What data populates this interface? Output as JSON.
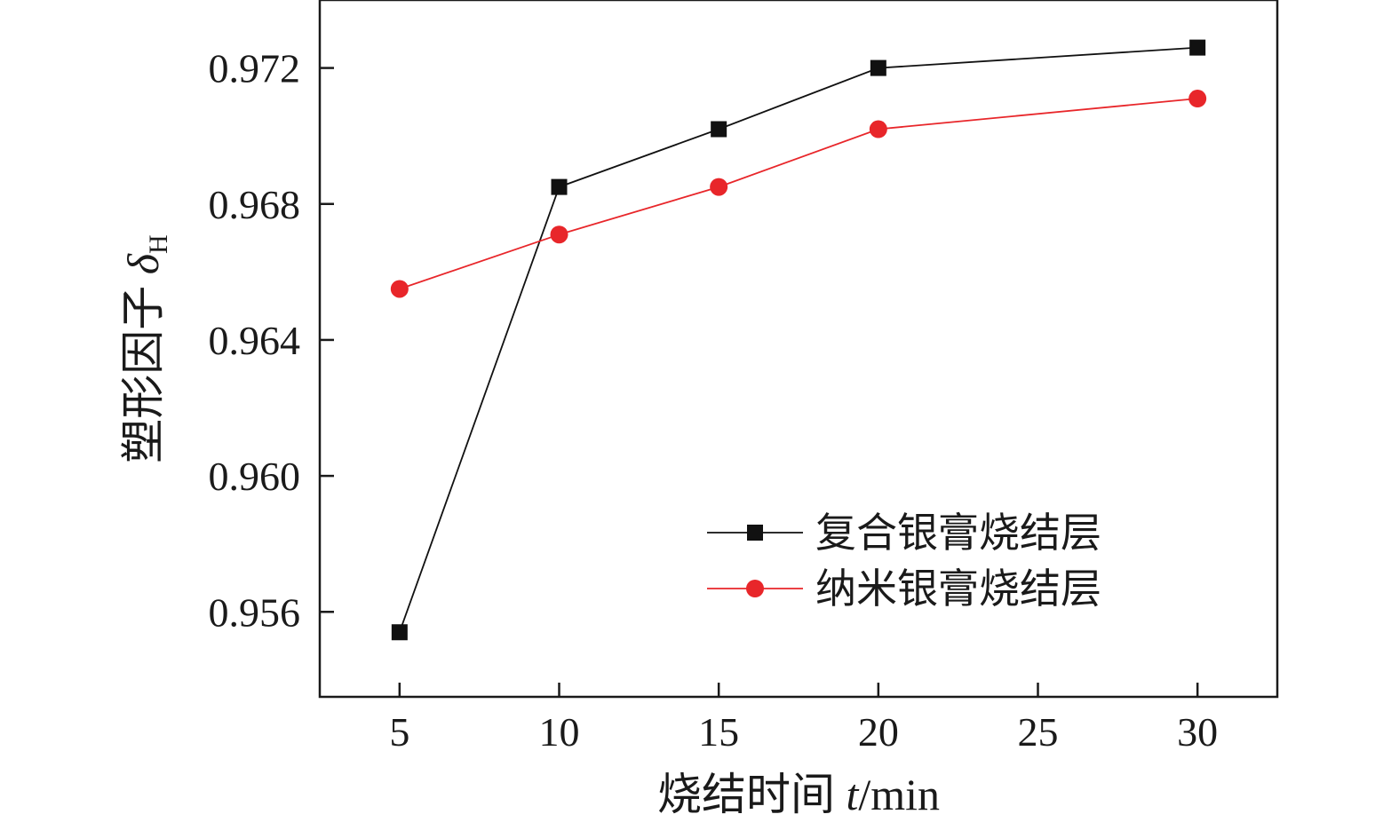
{
  "chart_data": {
    "type": "line",
    "title": "",
    "xlabel_prefix": "烧结时间 ",
    "xlabel_var": "t",
    "xlabel_unit": "/min",
    "ylabel_prefix": "塑形因子 ",
    "ylabel_var": "δ",
    "ylabel_sub": "H",
    "xlim": [
      2.5,
      32.5
    ],
    "ylim": [
      0.9535,
      0.974
    ],
    "xticks": [
      5,
      10,
      15,
      20,
      25,
      30
    ],
    "xtick_labels": [
      "5",
      "10",
      "15",
      "20",
      "25",
      "30"
    ],
    "yticks": [
      0.956,
      0.96,
      0.964,
      0.968,
      0.972
    ],
    "ytick_labels": [
      "0.956",
      "0.960",
      "0.964",
      "0.968",
      "0.972"
    ],
    "grid": false,
    "legend_position": "lower-right",
    "x": [
      5,
      10,
      15,
      20,
      30
    ],
    "series": [
      {
        "name": "复合银膏烧结层",
        "values": [
          0.9554,
          0.9685,
          0.9702,
          0.972,
          0.9726
        ],
        "marker": "square",
        "color": "#111111"
      },
      {
        "name": "纳米银膏烧结层",
        "values": [
          0.9655,
          0.9671,
          0.9685,
          0.9702,
          0.9711
        ],
        "marker": "circle",
        "color": "#e8262a"
      }
    ]
  }
}
